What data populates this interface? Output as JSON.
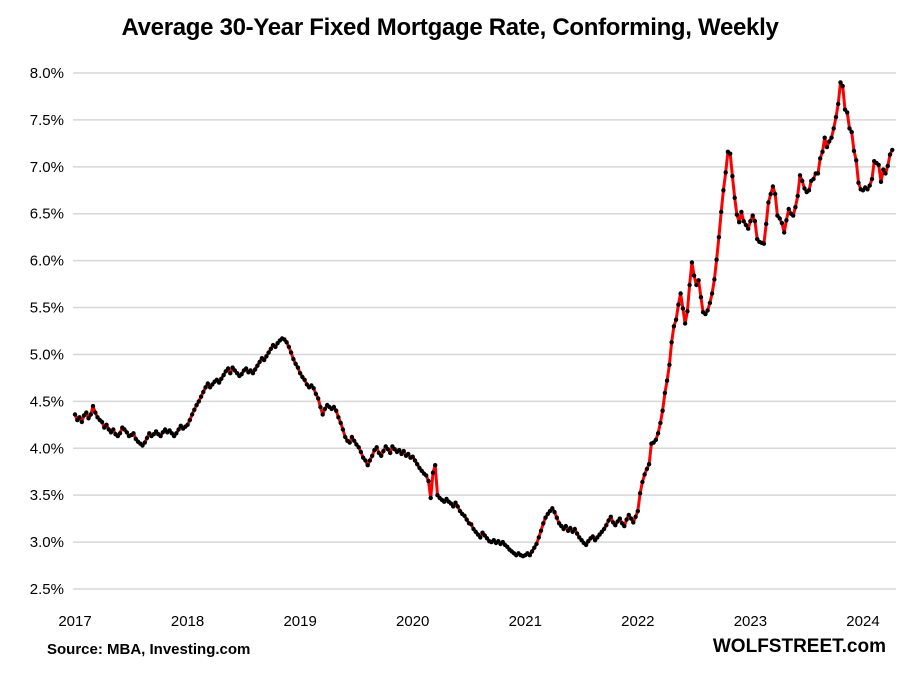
{
  "chart": {
    "title": "Average 30-Year Fixed Mortgage Rate, Conforming, Weekly",
    "source": "Source: MBA, Investing.com",
    "watermark": "WOLFSTREET.com"
  },
  "chart_data": {
    "type": "line",
    "title": "Average 30-Year Fixed Mortgage Rate, Conforming, Weekly",
    "xlabel": "",
    "ylabel": "",
    "ylim": [
      2.5,
      8.0
    ],
    "xlim": [
      2017.0,
      2024.3
    ],
    "grid": "horizontal",
    "gridline_color": "#d7d7d7",
    "background_color": "#ffffff",
    "text_color": "#000000",
    "legend_position": "none",
    "yticks": [
      {
        "label": "8.0%",
        "value": 8.0
      },
      {
        "label": "7.5%",
        "value": 7.5
      },
      {
        "label": "7.0%",
        "value": 7.0
      },
      {
        "label": "6.5%",
        "value": 6.5
      },
      {
        "label": "6.0%",
        "value": 6.0
      },
      {
        "label": "5.5%",
        "value": 5.5
      },
      {
        "label": "5.0%",
        "value": 5.0
      },
      {
        "label": "4.5%",
        "value": 4.5
      },
      {
        "label": "4.0%",
        "value": 4.0
      },
      {
        "label": "3.5%",
        "value": 3.5
      },
      {
        "label": "3.0%",
        "value": 3.0
      },
      {
        "label": "2.5%",
        "value": 2.5
      }
    ],
    "xticks": [
      {
        "label": "2017",
        "value": 2017
      },
      {
        "label": "2018",
        "value": 2018
      },
      {
        "label": "2019",
        "value": 2019
      },
      {
        "label": "2020",
        "value": 2020
      },
      {
        "label": "2021",
        "value": 2021
      },
      {
        "label": "2022",
        "value": 2022
      },
      {
        "label": "2023",
        "value": 2023
      },
      {
        "label": "2024",
        "value": 2024
      }
    ],
    "series": [
      {
        "name": "Average 30-year fixed conforming mortgage rate (%), weekly",
        "line_color": "#ff0000",
        "line_width": 3,
        "marker": "dot",
        "marker_color": "#000000",
        "marker_radius": 2.2,
        "x_start": 2017.0,
        "x_step": 0.02,
        "values": [
          4.36,
          4.3,
          4.33,
          4.28,
          4.35,
          4.38,
          4.32,
          4.36,
          4.45,
          4.38,
          4.33,
          4.3,
          4.28,
          4.22,
          4.25,
          4.2,
          4.17,
          4.2,
          4.15,
          4.13,
          4.16,
          4.22,
          4.2,
          4.17,
          4.13,
          4.14,
          4.16,
          4.1,
          4.07,
          4.05,
          4.03,
          4.06,
          4.11,
          4.16,
          4.13,
          4.15,
          4.18,
          4.15,
          4.13,
          4.17,
          4.2,
          4.17,
          4.19,
          4.16,
          4.13,
          4.16,
          4.2,
          4.24,
          4.21,
          4.23,
          4.25,
          4.3,
          4.36,
          4.41,
          4.46,
          4.5,
          4.55,
          4.6,
          4.65,
          4.69,
          4.65,
          4.68,
          4.71,
          4.73,
          4.7,
          4.74,
          4.78,
          4.82,
          4.85,
          4.8,
          4.86,
          4.83,
          4.8,
          4.77,
          4.79,
          4.83,
          4.85,
          4.81,
          4.83,
          4.8,
          4.84,
          4.88,
          4.92,
          4.96,
          4.94,
          4.98,
          5.02,
          5.06,
          5.1,
          5.08,
          5.12,
          5.15,
          5.17,
          5.16,
          5.13,
          5.08,
          5.02,
          4.95,
          4.9,
          4.86,
          4.8,
          4.76,
          4.73,
          4.68,
          4.65,
          4.67,
          4.64,
          4.58,
          4.53,
          4.44,
          4.36,
          4.42,
          4.46,
          4.44,
          4.42,
          4.44,
          4.4,
          4.33,
          4.27,
          4.2,
          4.12,
          4.08,
          4.06,
          4.12,
          4.08,
          4.04,
          4.01,
          3.96,
          3.9,
          3.87,
          3.82,
          3.87,
          3.92,
          3.98,
          4.01,
          3.95,
          3.92,
          3.97,
          4.02,
          3.99,
          3.95,
          4.02,
          3.99,
          3.96,
          3.98,
          3.94,
          3.97,
          3.92,
          3.94,
          3.9,
          3.91,
          3.87,
          3.83,
          3.79,
          3.76,
          3.73,
          3.71,
          3.65,
          3.47,
          3.74,
          3.82,
          3.5,
          3.47,
          3.45,
          3.43,
          3.46,
          3.43,
          3.41,
          3.38,
          3.42,
          3.38,
          3.33,
          3.3,
          3.28,
          3.24,
          3.2,
          3.19,
          3.14,
          3.11,
          3.08,
          3.05,
          3.1,
          3.07,
          3.04,
          3.01,
          3.0,
          3.02,
          2.99,
          3.01,
          2.98,
          3.0,
          2.97,
          2.95,
          2.92,
          2.9,
          2.88,
          2.86,
          2.88,
          2.86,
          2.85,
          2.86,
          2.88,
          2.86,
          2.9,
          2.94,
          2.98,
          3.05,
          3.12,
          3.2,
          3.26,
          3.3,
          3.33,
          3.36,
          3.32,
          3.26,
          3.2,
          3.17,
          3.14,
          3.17,
          3.12,
          3.15,
          3.11,
          3.14,
          3.09,
          3.05,
          3.02,
          2.99,
          2.97,
          3.01,
          3.04,
          3.06,
          3.02,
          3.05,
          3.08,
          3.11,
          3.14,
          3.18,
          3.23,
          3.27,
          3.21,
          3.18,
          3.22,
          3.25,
          3.2,
          3.17,
          3.24,
          3.29,
          3.25,
          3.21,
          3.27,
          3.33,
          3.52,
          3.64,
          3.72,
          3.78,
          3.83,
          4.05,
          4.06,
          4.09,
          4.16,
          4.27,
          4.4,
          4.59,
          4.72,
          4.89,
          5.13,
          5.3,
          5.37,
          5.53,
          5.65,
          5.49,
          5.33,
          5.46,
          5.74,
          5.98,
          5.84,
          5.74,
          5.79,
          5.61,
          5.45,
          5.43,
          5.47,
          5.55,
          5.65,
          5.8,
          6.01,
          6.25,
          6.52,
          6.75,
          6.94,
          7.16,
          7.14,
          6.9,
          6.67,
          6.49,
          6.41,
          6.52,
          6.42,
          6.38,
          6.34,
          6.42,
          6.48,
          6.42,
          6.23,
          6.2,
          6.19,
          6.18,
          6.39,
          6.62,
          6.71,
          6.79,
          6.71,
          6.48,
          6.45,
          6.4,
          6.3,
          6.43,
          6.55,
          6.5,
          6.48,
          6.57,
          6.69,
          6.91,
          6.85,
          6.77,
          6.73,
          6.75,
          6.85,
          6.87,
          6.93,
          6.93,
          7.09,
          7.16,
          7.31,
          7.21,
          7.27,
          7.31,
          7.41,
          7.53,
          7.67,
          7.9,
          7.86,
          7.61,
          7.58,
          7.41,
          7.37,
          7.17,
          7.07,
          6.83,
          6.76,
          6.75,
          6.78,
          6.76,
          6.8,
          6.87,
          7.06,
          7.04,
          7.02,
          6.84,
          6.97,
          6.93,
          7.01,
          7.13,
          7.18
        ]
      }
    ]
  }
}
